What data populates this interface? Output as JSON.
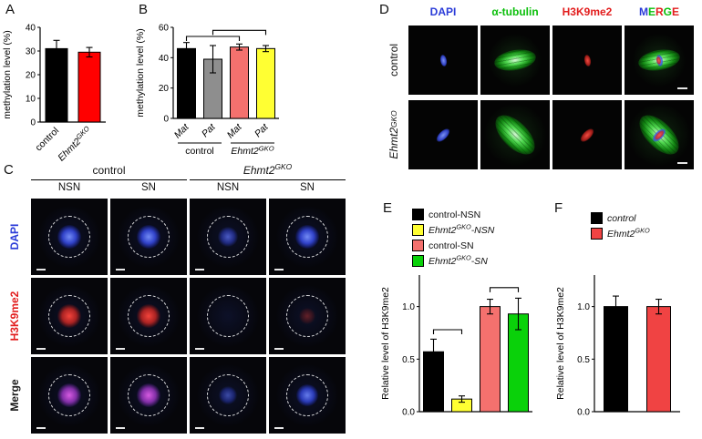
{
  "panels": {
    "A": {
      "label": "A"
    },
    "B": {
      "label": "B"
    },
    "C": {
      "label": "C",
      "group_headers": [
        {
          "text": "control",
          "italic": false
        },
        {
          "text": "Ehmt2^{GKO}",
          "italic": true
        }
      ],
      "col_headers": [
        "NSN",
        "SN",
        "NSN",
        "SN"
      ],
      "row_labels": [
        {
          "text": "DAPI",
          "color": "#2a3bd8"
        },
        {
          "text": "H3K9me2",
          "color": "#e21d1d"
        },
        {
          "text": "Merge",
          "color": "#1a1a1a"
        }
      ],
      "cells": [
        [
          "dapi-bright",
          "dapi-bright",
          "dapi-dim",
          "dapi-bright"
        ],
        [
          "red-bright",
          "red-bright",
          "red-none",
          "red-faint"
        ],
        [
          "merge-magenta",
          "merge-magenta",
          "merge-blue-dim",
          "merge-blue"
        ]
      ]
    },
    "D": {
      "label": "D",
      "col_headers": [
        {
          "text": "DAPI",
          "color": "#2a3bd8"
        },
        {
          "text": "α-tubulin",
          "color": "#0bbf0b"
        },
        {
          "text": "H3K9me2",
          "color": "#e21d1d"
        },
        {
          "text": "MERGE",
          "letters": [
            {
              "ch": "M",
              "color": "#2a3bd8"
            },
            {
              "ch": "E",
              "color": "#0bbf0b"
            },
            {
              "ch": "R",
              "color": "#e21d1d"
            },
            {
              "ch": "G",
              "color": "#0bbf0b"
            },
            {
              "ch": "E",
              "color": "#e21d1d"
            }
          ]
        }
      ],
      "row_labels": [
        {
          "text": "control",
          "italic": false
        },
        {
          "text": "Ehmt2^{GKO}",
          "italic": true
        }
      ],
      "cells": [
        [
          "d-dapi",
          "d-tub",
          "d-h3k",
          "d-merge"
        ],
        [
          "d-dapi",
          "d-tub",
          "d-h3k",
          "d-merge"
        ]
      ]
    },
    "E": {
      "label": "E"
    },
    "F": {
      "label": "F"
    }
  },
  "chart_data": [
    {
      "panel": "A",
      "type": "bar",
      "categories": [
        {
          "label": "control",
          "italic": false
        },
        {
          "label": "Ehmt2^{GKO}",
          "italic": true
        }
      ],
      "values": [
        31,
        29.5
      ],
      "errors": [
        3.5,
        2
      ],
      "ylabel": "methylation level (%)",
      "ylim": [
        0,
        40
      ],
      "yticks": [
        {
          "v": 0,
          "label": "0"
        },
        {
          "v": 10,
          "label": "10"
        },
        {
          "v": 20,
          "label": "20"
        },
        {
          "v": 30,
          "label": "30"
        },
        {
          "v": 40,
          "label": "40"
        }
      ],
      "colors": [
        "#000000",
        "#ff0000"
      ],
      "grid": false,
      "rotate_xlabels": true
    },
    {
      "panel": "B",
      "type": "bar",
      "categories": [
        {
          "label": "Mat",
          "italic": true
        },
        {
          "label": "Pat",
          "italic": true
        },
        {
          "label": "Mat",
          "italic": true
        },
        {
          "label": "Pat",
          "italic": true
        }
      ],
      "values": [
        46,
        39,
        47,
        46
      ],
      "errors": [
        4,
        9,
        2,
        2
      ],
      "ylabel": "methylation level (%)",
      "ylim": [
        0,
        60
      ],
      "yticks": [
        {
          "v": 0,
          "label": "0"
        },
        {
          "v": 20,
          "label": "20"
        },
        {
          "v": 40,
          "label": "40"
        },
        {
          "v": 60,
          "label": "60"
        }
      ],
      "colors": [
        "#000000",
        "#8e8e8e",
        "#f4716e",
        "#ffff33"
      ],
      "groups": [
        {
          "label": "control",
          "italic": false,
          "span": [
            0,
            1
          ]
        },
        {
          "label": "Ehmt2^{GKO}",
          "italic": true,
          "span": [
            2,
            3
          ]
        }
      ],
      "brackets": [
        {
          "from": 0,
          "to": 2,
          "y": 54
        },
        {
          "from": 1,
          "to": 3,
          "y": 58
        }
      ],
      "grid": false,
      "rotate_xlabels": true
    },
    {
      "panel": "E",
      "type": "bar",
      "categories": [
        {
          "label": "control-NSN"
        },
        {
          "label": "Ehmt2^{GKO}-NSN"
        },
        {
          "label": "control-SN"
        },
        {
          "label": "Ehmt2^{GKO}-SN"
        }
      ],
      "values": [
        0.57,
        0.12,
        1.0,
        0.93
      ],
      "errors": [
        0.12,
        0.03,
        0.07,
        0.15
      ],
      "ylabel": "Relative level of H3K9me2",
      "ylim": [
        0,
        1.3
      ],
      "yticks": [
        {
          "v": 0,
          "label": "0.0"
        },
        {
          "v": 0.5,
          "label": "0.5"
        },
        {
          "v": 1,
          "label": "1.0"
        }
      ],
      "colors": [
        "#000000",
        "#ffff33",
        "#f4716e",
        "#0ad10a"
      ],
      "legend": [
        {
          "label": "control-NSN",
          "color": "#000000",
          "italic": false
        },
        {
          "label": "Ehmt2^{GKO}-NSN",
          "color": "#ffff33",
          "italic": true
        },
        {
          "label": "control-SN",
          "color": "#f4716e",
          "italic": false
        },
        {
          "label": "Ehmt2^{GKO}-SN",
          "color": "#0ad10a",
          "italic": true
        }
      ],
      "brackets": [
        {
          "from": 0,
          "to": 1,
          "y": 0.78
        },
        {
          "from": 2,
          "to": 3,
          "y": 1.18
        }
      ],
      "grid": false,
      "hide_xlabels": true
    },
    {
      "panel": "F",
      "type": "bar",
      "categories": [
        {
          "label": "control"
        },
        {
          "label": "Ehmt2^{GKO}"
        }
      ],
      "values": [
        1.0,
        1.0
      ],
      "errors": [
        0.1,
        0.07
      ],
      "ylabel": "Relative level of H3K9me2",
      "ylim": [
        0,
        1.3
      ],
      "yticks": [
        {
          "v": 0,
          "label": "0.0"
        },
        {
          "v": 0.5,
          "label": "0.5"
        },
        {
          "v": 1,
          "label": "1.0"
        }
      ],
      "colors": [
        "#000000",
        "#f04343"
      ],
      "legend": [
        {
          "label": "control",
          "color": "#000000",
          "italic": true
        },
        {
          "label": "Ehmt2^{GKO}",
          "color": "#f04343",
          "italic": true
        }
      ],
      "grid": false,
      "hide_xlabels": true
    }
  ]
}
